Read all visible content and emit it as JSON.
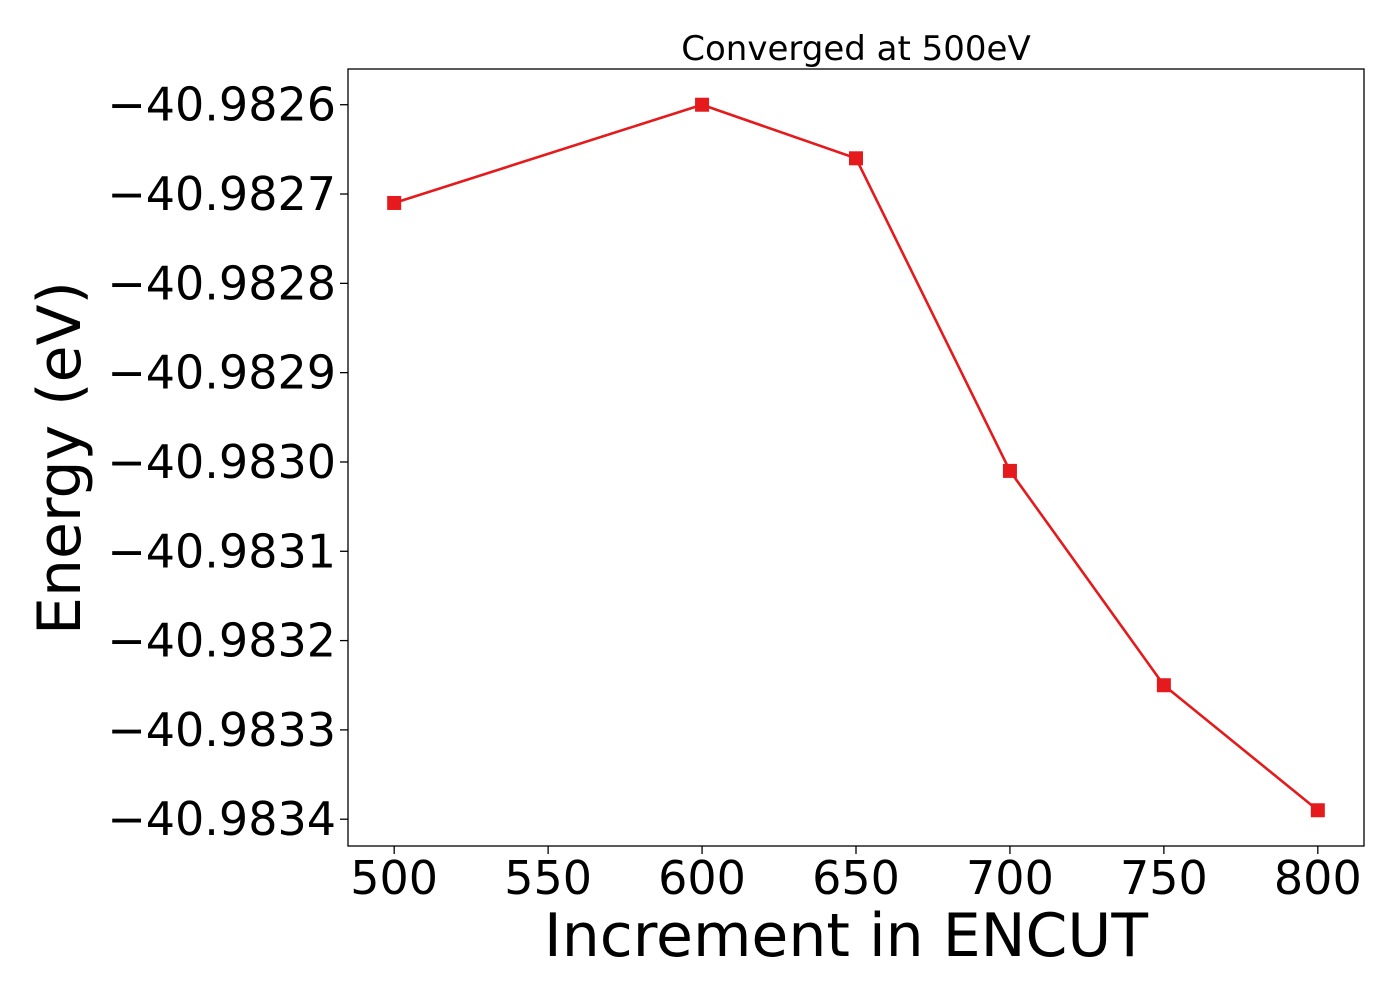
{
  "chart_data": {
    "type": "line",
    "title": "Converged at 500eV",
    "xlabel": "Increment in ENCUT",
    "ylabel": "Energy (eV)",
    "x": [
      500,
      600,
      650,
      700,
      750,
      800
    ],
    "y": [
      -40.98271,
      -40.9826,
      -40.98266,
      -40.98301,
      -40.98325,
      -40.98339
    ],
    "xticks": [
      500,
      550,
      600,
      650,
      700,
      750,
      800
    ],
    "xtick_labels": [
      "500",
      "550",
      "600",
      "650",
      "700",
      "750",
      "800"
    ],
    "yticks": [
      -40.9826,
      -40.9827,
      -40.9828,
      -40.9829,
      -40.983,
      -40.9831,
      -40.9832,
      -40.9833,
      -40.9834
    ],
    "ytick_labels": [
      "−40.9826",
      "−40.9827",
      "−40.9828",
      "−40.9829",
      "−40.9830",
      "−40.9831",
      "−40.9832",
      "−40.9833",
      "−40.9834"
    ],
    "xlim": [
      485,
      815
    ],
    "ylim": [
      -40.98343,
      -40.98256
    ],
    "marker": "square",
    "color": "#e41a1c",
    "grid": false,
    "legend": "none"
  }
}
